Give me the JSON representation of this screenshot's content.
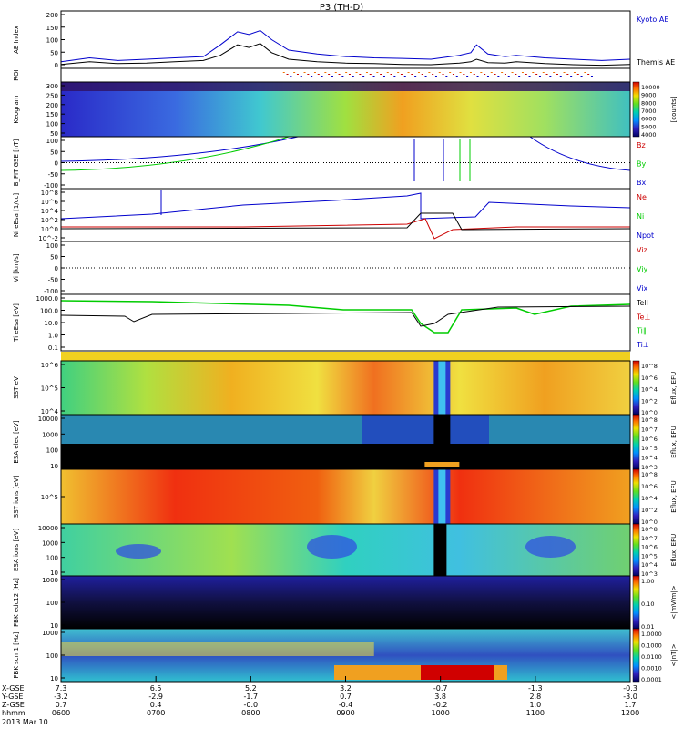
{
  "chart_data": {
    "type": "multi-panel",
    "title": "P3 (TH-D)",
    "date": "2013 Mar 10",
    "time_range_hhmm": [
      "0600",
      "1200"
    ],
    "colors": {
      "kyoto": "#0000cc",
      "themis": "#000000",
      "red": "#cc0000",
      "green": "#00cc00",
      "blue": "#0000cc"
    },
    "panels": [
      {
        "id": "ae",
        "type": "line",
        "ylabel": "AE Index",
        "yticks": [
          "200",
          "150",
          "100",
          "50",
          "0"
        ],
        "ylim": [
          0,
          220
        ],
        "legend": [
          "Kyoto AE",
          "Themis AE"
        ],
        "series": [
          {
            "name": "Kyoto AE",
            "t": [
              0,
              0.05,
              0.1,
              0.15,
              0.2,
              0.25,
              0.28,
              0.31,
              0.33,
              0.35,
              0.37,
              0.4,
              0.45,
              0.5,
              0.55,
              0.6,
              0.65,
              0.7,
              0.72,
              0.73,
              0.75,
              0.78,
              0.8,
              0.85,
              0.9,
              0.95,
              1.0
            ],
            "v": [
              25,
              40,
              30,
              35,
              40,
              45,
              90,
              140,
              130,
              145,
              110,
              70,
              55,
              45,
              40,
              38,
              35,
              50,
              60,
              90,
              55,
              45,
              50,
              40,
              35,
              30,
              35
            ]
          },
          {
            "name": "Themis AE",
            "t": [
              0,
              0.05,
              0.1,
              0.15,
              0.2,
              0.25,
              0.28,
              0.31,
              0.33,
              0.35,
              0.37,
              0.4,
              0.45,
              0.5,
              0.55,
              0.6,
              0.65,
              0.7,
              0.72,
              0.73,
              0.75,
              0.78,
              0.8,
              0.85,
              0.9,
              0.95,
              1.0
            ],
            "v": [
              15,
              25,
              18,
              20,
              25,
              30,
              50,
              90,
              80,
              95,
              60,
              35,
              25,
              20,
              18,
              15,
              14,
              20,
              25,
              35,
              22,
              20,
              25,
              18,
              14,
              12,
              15
            ]
          }
        ]
      },
      {
        "id": "roi",
        "type": "marker",
        "ylabel": "ROI"
      },
      {
        "id": "keogram",
        "type": "heatmap",
        "ylabel": "Keogram",
        "yticks": [
          "300",
          "250",
          "200",
          "150",
          "100",
          "50"
        ],
        "colorbar": {
          "ticks": [
            "10000",
            "9000",
            "8000",
            "7000",
            "6000",
            "5000",
            "4000"
          ],
          "label": "[counts]"
        }
      },
      {
        "id": "bfield",
        "type": "line",
        "ylabel": "B_FIT GSE [nT]",
        "yticks": [
          "100",
          "50",
          "0",
          "-50",
          "-100"
        ],
        "ylim": [
          -100,
          100
        ],
        "legend": [
          "Bz",
          "By",
          "Bx"
        ]
      },
      {
        "id": "density",
        "type": "line",
        "ylabel": "Ni eEsa [1/cc]",
        "yticks": [
          "10^8",
          "10^6",
          "10^4",
          "10^2",
          "10^0",
          "10^-2"
        ],
        "legend": [
          "Ne",
          "Ni",
          "Npot"
        ]
      },
      {
        "id": "velocity",
        "type": "line",
        "ylabel": "Vi [km/s]",
        "yticks": [
          "100",
          "50",
          "0",
          "-50",
          "-100"
        ],
        "ylim": [
          -100,
          100
        ],
        "legend": [
          "Viz",
          "Viy",
          "Vix"
        ]
      },
      {
        "id": "temperature",
        "type": "line",
        "ylabel": "Ti eEsa [eV]",
        "yticks": [
          "1000.0",
          "100.0",
          "10.0",
          "1.0",
          "0.1"
        ],
        "legend": [
          "Tell",
          "Te⊥",
          "Ti∥",
          "Ti⊥"
        ]
      },
      {
        "id": "sst_e",
        "type": "heatmap",
        "ylabel": "SST eV",
        "yticks": [
          "10^6",
          "10^5",
          "10^4"
        ],
        "colorbar": {
          "ticks": [
            "10^8",
            "10^6",
            "10^4",
            "10^2",
            "10^0"
          ],
          "label": "Eflux, EFU"
        }
      },
      {
        "id": "esa_e",
        "type": "heatmap",
        "ylabel": "ESA elec [eV]",
        "yticks": [
          "10000",
          "1000",
          "100",
          "10"
        ],
        "colorbar": {
          "ticks": [
            "10^8",
            "10^7",
            "10^6",
            "10^5",
            "10^4",
            "10^3"
          ],
          "label": "Eflux, EFU"
        }
      },
      {
        "id": "sst_i",
        "type": "heatmap",
        "ylabel": "SST ions [eV]",
        "yticks": [
          "10^5"
        ],
        "colorbar": {
          "ticks": [
            "10^8",
            "10^6",
            "10^4",
            "10^2",
            "10^0"
          ],
          "label": "Eflux, EFU"
        }
      },
      {
        "id": "esa_i",
        "type": "heatmap",
        "ylabel": "ESA ions [eV]",
        "yticks": [
          "10000",
          "1000",
          "100",
          "10"
        ],
        "colorbar": {
          "ticks": [
            "10^8",
            "10^7",
            "10^6",
            "10^5",
            "10^4",
            "10^3"
          ],
          "label": "Eflux, EFU"
        }
      },
      {
        "id": "fbk_e",
        "type": "heatmap",
        "ylabel": "FBK edc12 [Hz]",
        "yticks": [
          "1000",
          "100",
          "10"
        ],
        "colorbar": {
          "ticks": [
            "1.00",
            "0.10",
            "0.01"
          ],
          "label": "<|mV/m|>"
        }
      },
      {
        "id": "fbk_b",
        "type": "heatmap",
        "ylabel": "FBK scm1 [Hz]",
        "yticks": [
          "1000",
          "100",
          "10"
        ],
        "colorbar": {
          "ticks": [
            "1.0000",
            "0.1000",
            "0.0100",
            "0.0010",
            "0.0001"
          ],
          "label": "<|nT|>"
        }
      }
    ],
    "xaxis": {
      "row_labels": [
        "X-GSE",
        "Y-GSE",
        "Z-GSE",
        "hhmm"
      ],
      "ticks": [
        {
          "x_gse": "7.3",
          "y_gse": "-3.2",
          "z_gse": "0.7",
          "hhmm": "0600"
        },
        {
          "x_gse": "6.5",
          "y_gse": "-2.9",
          "z_gse": "0.4",
          "hhmm": "0700"
        },
        {
          "x_gse": "5.2",
          "y_gse": "-1.7",
          "z_gse": "-0.0",
          "hhmm": "0800"
        },
        {
          "x_gse": "3.2",
          "y_gse": "0.7",
          "z_gse": "-0.4",
          "hhmm": "0900"
        },
        {
          "x_gse": "-0.7",
          "y_gse": "3.8",
          "z_gse": "-0.2",
          "hhmm": "1000"
        },
        {
          "x_gse": "-1.3",
          "y_gse": "2.8",
          "z_gse": "1.0",
          "hhmm": "1100"
        },
        {
          "x_gse": "-0.3",
          "y_gse": "-3.0",
          "z_gse": "1.7",
          "hhmm": "1200"
        }
      ]
    }
  }
}
